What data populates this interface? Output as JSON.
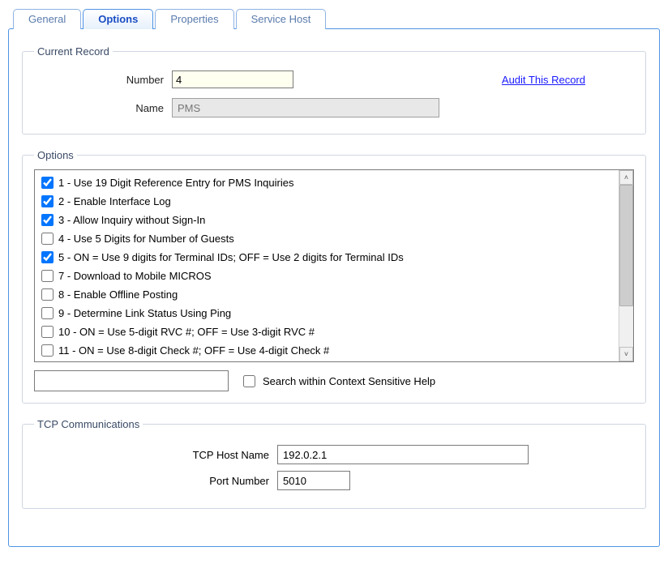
{
  "tabs": {
    "general": "General",
    "options": "Options",
    "properties": "Properties",
    "service_host": "Service Host"
  },
  "current_record": {
    "legend": "Current Record",
    "number_label": "Number",
    "number_value": "4",
    "name_label": "Name",
    "name_value": "PMS",
    "audit_link": "Audit This Record"
  },
  "options_section": {
    "legend": "Options",
    "items": [
      {
        "checked": true,
        "label": "1 - Use 19 Digit Reference Entry for PMS Inquiries"
      },
      {
        "checked": true,
        "label": "2 - Enable Interface Log"
      },
      {
        "checked": true,
        "label": "3 - Allow Inquiry without Sign-In"
      },
      {
        "checked": false,
        "label": "4 - Use 5 Digits for Number of Guests"
      },
      {
        "checked": true,
        "label": "5 - ON = Use 9 digits for Terminal IDs; OFF = Use 2 digits for Terminal IDs"
      },
      {
        "checked": false,
        "label": "7 - Download to Mobile MICROS"
      },
      {
        "checked": false,
        "label": "8 - Enable Offline Posting"
      },
      {
        "checked": false,
        "label": "9 - Determine Link Status Using Ping"
      },
      {
        "checked": false,
        "label": "10 - ON = Use 5-digit RVC #; OFF = Use 3-digit RVC #"
      },
      {
        "checked": false,
        "label": "11 - ON = Use 8-digit Check #; OFF = Use 4-digit Check #"
      }
    ],
    "search_value": "",
    "search_checkbox_label": "Search within Context Sensitive Help"
  },
  "tcp": {
    "legend": "TCP Communications",
    "host_label": "TCP Host Name",
    "host_value": "192.0.2.1",
    "port_label": "Port Number",
    "port_value": "5010"
  }
}
